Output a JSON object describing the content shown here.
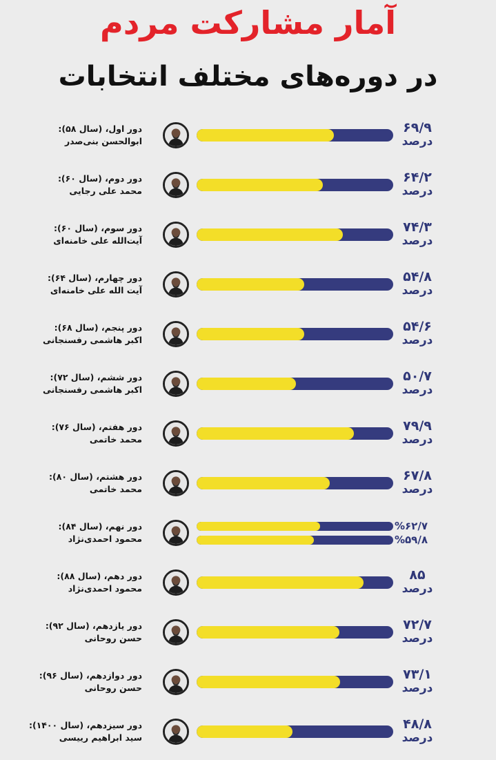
{
  "title": "آمار مشارکت مردم",
  "subtitle": "در دوره‌های مختلف انتخابات",
  "colors": {
    "title": "#e3232a",
    "bar_fill": "#f3de28",
    "bar_track": "#353b7e",
    "text": "#2f3778",
    "background": "#ececec"
  },
  "chart_data": {
    "type": "bar",
    "orientation": "horizontal",
    "xlim": [
      0,
      100
    ],
    "unit": "درصد",
    "categories": [
      {
        "round": "دور اول، (سال ۵۸):",
        "name": "ابوالحسن بنی‌صدر",
        "value": 69.9,
        "display": "۶۹/۹",
        "unit": "درصد",
        "icon": "portrait-banisadr"
      },
      {
        "round": "دور دوم، (سال ۶۰):",
        "name": "محمد علی رجایی",
        "value": 64.2,
        "display": "۶۴/۲",
        "unit": "درصد",
        "icon": "portrait-rajai"
      },
      {
        "round": "دور سوم، (سال ۶۰):",
        "name": "آیت‌الله علی خامنه‌ای",
        "value": 74.3,
        "display": "۷۴/۳",
        "unit": "درصد",
        "icon": "portrait-khamenei"
      },
      {
        "round": "دور چهارم، (سال ۶۴):",
        "name": "آیت الله علی خامنه‌ای",
        "value": 54.8,
        "display": "۵۴/۸",
        "unit": "درصد",
        "icon": "portrait-khamenei"
      },
      {
        "round": "دور پنجم، (سال ۶۸):",
        "name": "اکبر هاشمی رفسنجانی",
        "value": 54.6,
        "display": "۵۴/۶",
        "unit": "درصد",
        "icon": "portrait-rafsanjani"
      },
      {
        "round": "دور ششم، (سال ۷۲):",
        "name": "اکبر هاشمی رفسنجانی",
        "value": 50.7,
        "display": "۵۰/۷",
        "unit": "درصد",
        "icon": "portrait-rafsanjani"
      },
      {
        "round": "دور هفتم، (سال ۷۶):",
        "name": "محمد خاتمی",
        "value": 79.9,
        "display": "۷۹/۹",
        "unit": "درصد",
        "icon": "portrait-khatami"
      },
      {
        "round": "دور هشتم، (سال ۸۰):",
        "name": "محمد خاتمی",
        "value": 67.8,
        "display": "۶۷/۸",
        "unit": "درصد",
        "icon": "portrait-khatami"
      },
      {
        "round": "دور نهم، (سال ۸۴):",
        "name": "محمود احمدی‌نژاد",
        "values": [
          62.7,
          59.8
        ],
        "displays": [
          "%۶۲/۷",
          "%۵۹/۸"
        ],
        "icon": "portrait-ahmadinejad"
      },
      {
        "round": "دور دهم، (سال ۸۸):",
        "name": "محمود احمدی‌نژاد",
        "value": 85,
        "display": "۸۵",
        "unit": "درصد",
        "icon": "portrait-ahmadinejad"
      },
      {
        "round": "دور یازدهم، (سال ۹۲):",
        "name": "حسن روحانی",
        "value": 72.7,
        "display": "۷۲/۷",
        "unit": "درصد",
        "icon": "portrait-rouhani"
      },
      {
        "round": "دور دوازدهم، (سال ۹۶):",
        "name": "حسن روحانی",
        "value": 73.1,
        "display": "۷۳/۱",
        "unit": "درصد",
        "icon": "portrait-rouhani"
      },
      {
        "round": "دور سیزدهم، (سال ۱۴۰۰):",
        "name": "سید ابراهیم رییسی",
        "value": 48.8,
        "display": "۴۸/۸",
        "unit": "درصد",
        "icon": "portrait-raisi"
      }
    ]
  }
}
